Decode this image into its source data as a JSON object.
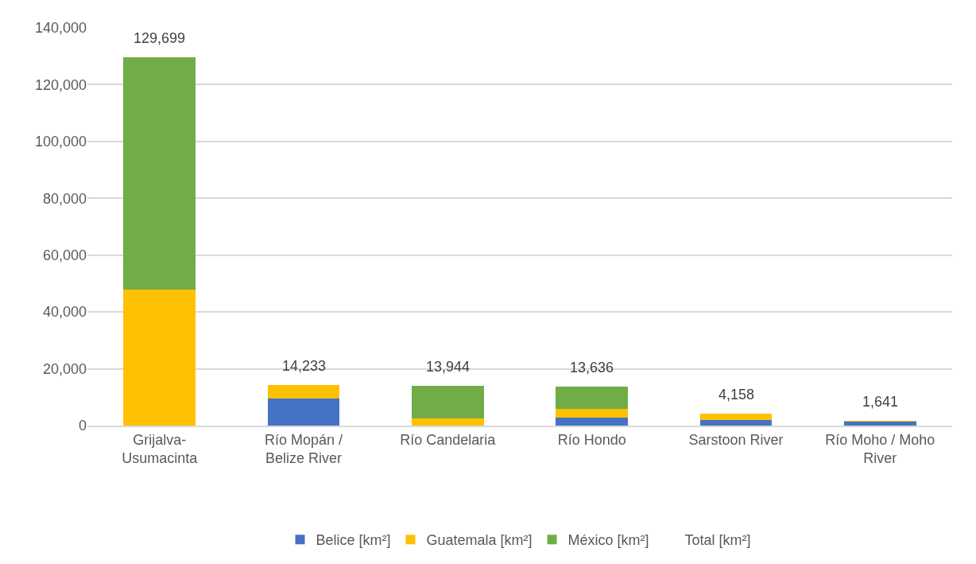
{
  "chart_data": {
    "type": "bar",
    "stacked": true,
    "categories": [
      "Grijalva-Usumacinta",
      "Río Mopán / Belize River",
      "Río Candelaria",
      "Río Hondo",
      "Sarstoon River",
      "Río Moho / Moho River"
    ],
    "series": [
      {
        "name": "Belice [km²]",
        "color": "#4472c4",
        "values": [
          0,
          9400,
          0,
          2800,
          2100,
          1400
        ]
      },
      {
        "name": "Guatemala [km²]",
        "color": "#ffc000",
        "values": [
          48000,
          4833,
          2600,
          3100,
          2058,
          241
        ]
      },
      {
        "name": "México [km²]",
        "color": "#70ad47",
        "values": [
          81699,
          0,
          11344,
          7736,
          0,
          0
        ]
      },
      {
        "name": "Total [km²]",
        "type": "scatter",
        "values": [
          null,
          null,
          null,
          null,
          null,
          null
        ]
      }
    ],
    "totals": [
      "129,699",
      "14,233",
      "13,944",
      "13,636",
      "4,158",
      "1,641"
    ],
    "ylim": [
      0,
      140000
    ],
    "yticks": [
      {
        "value": 0,
        "label": "0"
      },
      {
        "value": 20000,
        "label": "20,000"
      },
      {
        "value": 40000,
        "label": "40,000"
      },
      {
        "value": 60000,
        "label": "60,000"
      },
      {
        "value": 80000,
        "label": "80,000"
      },
      {
        "value": 100000,
        "label": "100,000"
      },
      {
        "value": 120000,
        "label": "120,000"
      },
      {
        "value": 140000,
        "label": "140,000"
      }
    ],
    "grid": "y",
    "legend": "bottom"
  }
}
